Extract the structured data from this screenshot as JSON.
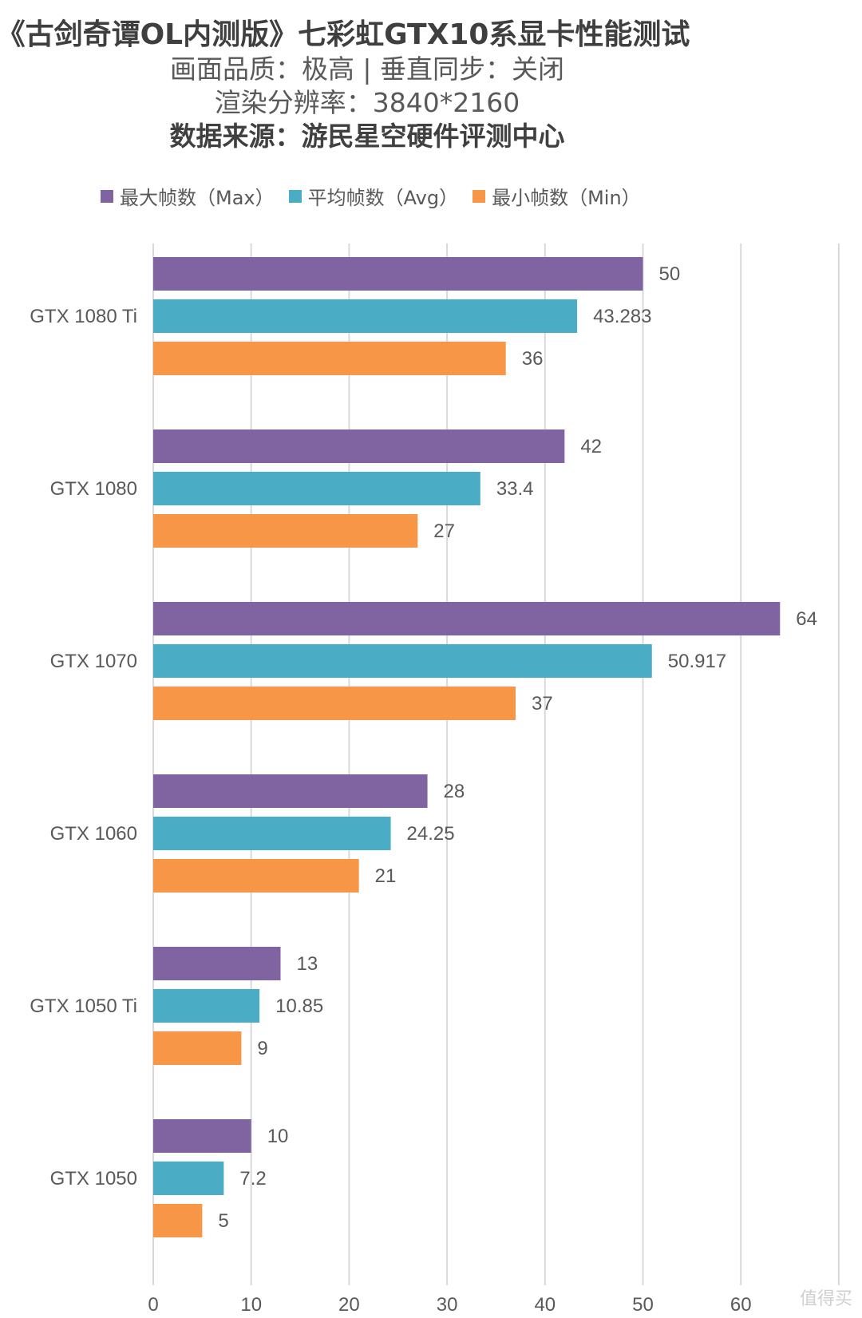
{
  "header": {
    "title": "《古剑奇谭OL内测版》七彩虹GTX10系显卡性能测试",
    "subtitle_quality": "画面品质：极高 | 垂直同步：关闭",
    "subtitle_resolution": "渲染分辨率：3840*2160",
    "source": "数据来源：游民星空硬件评测中心"
  },
  "watermark": "值得买",
  "colors": {
    "max": "#8064a2",
    "avg": "#4bacc6",
    "min": "#f79646",
    "grid": "#d9d9d9"
  },
  "chart_data": {
    "type": "bar",
    "orientation": "horizontal",
    "categories": [
      "GTX 1080 Ti",
      "GTX 1080",
      "GTX 1070",
      "GTX 1060",
      "GTX 1050 Ti",
      "GTX 1050"
    ],
    "series": [
      {
        "name": "最大帧数（Max）",
        "key": "max",
        "values": [
          50,
          42,
          64,
          28,
          13,
          10
        ],
        "labels": [
          "50",
          "42",
          "64",
          "28",
          "13",
          "10"
        ]
      },
      {
        "name": "平均帧数（Avg）",
        "key": "avg",
        "values": [
          43.283,
          33.4,
          50.917,
          24.25,
          10.85,
          7.2
        ],
        "labels": [
          "43.283",
          "33.4",
          "50.917",
          "24.25",
          "10.85",
          "7.2"
        ]
      },
      {
        "name": "最小帧数（Min）",
        "key": "min",
        "values": [
          36,
          27,
          37,
          21,
          9,
          5
        ],
        "labels": [
          "36",
          "27",
          "37",
          "21",
          "9",
          "5"
        ]
      }
    ],
    "xlim": [
      0,
      70
    ],
    "xticks": [
      0,
      10,
      20,
      30,
      40,
      50,
      60,
      70
    ],
    "xtick_labels": [
      "0",
      "10",
      "20",
      "30",
      "40",
      "50",
      "60",
      ""
    ],
    "grid": true,
    "legend_position": "top"
  }
}
